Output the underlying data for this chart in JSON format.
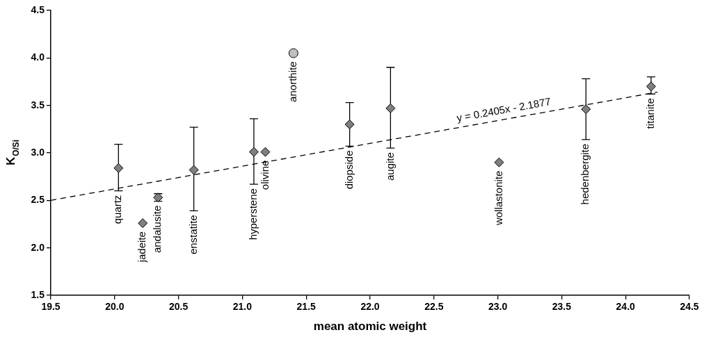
{
  "chart_data": {
    "type": "scatter",
    "xlabel": "mean atomic weight",
    "ylabel": "K$_{O/Si}$",
    "xlim": [
      19.5,
      24.5
    ],
    "ylim": [
      1.5,
      4.5
    ],
    "xticks": [
      19.5,
      {
        "value": 20,
        "label": "20.0"
      },
      20.5,
      {
        "value": 21,
        "label": "21.0"
      },
      21.5,
      {
        "value": 22,
        "label": "22.0"
      },
      22.5,
      {
        "value": 23,
        "label": "23.0"
      },
      23.5,
      {
        "value": 24,
        "label": "24.0"
      },
      24.5
    ],
    "yticks": [
      1.5,
      {
        "value": 2,
        "label": "2.0"
      },
      2.5,
      {
        "value": 3,
        "label": "3.0"
      },
      3.5,
      {
        "value": 4,
        "label": "4.0"
      },
      4.5
    ],
    "grid": false,
    "legend": false,
    "series": [
      {
        "color": "#7f7f7f",
        "marker": "diamond",
        "x": [
          20.03,
          20.22,
          20.34,
          20.62,
          21.09,
          21.18,
          21.84,
          22.16,
          23.01,
          23.69,
          24.2
        ],
        "values": [
          2.84,
          2.26,
          2.53,
          2.82,
          3.01,
          3.01,
          3.3,
          3.47,
          2.9,
          3.46,
          3.7
        ],
        "errors": [
          [
            2.6,
            3.09
          ],
          null,
          [
            2.49,
            2.57
          ],
          [
            2.39,
            3.27
          ],
          [
            2.67,
            3.36
          ],
          null,
          [
            3.07,
            3.53
          ],
          [
            3.05,
            3.9
          ],
          null,
          [
            3.14,
            3.78
          ],
          [
            3.62,
            3.8
          ]
        ]
      },
      {
        "color": "#bfbfbf",
        "marker": "circle",
        "x": [
          21.4
        ],
        "values": [
          4.05
        ]
      },
      {
        "type": "line",
        "color": "#000000",
        "marker": "none",
        "line_style": "dashed",
        "x": [
          19.5,
          24.25
        ],
        "values": [
          2.5,
          3.64
        ]
      }
    ],
    "annotations": [
      {
        "text": "quartz",
        "x": 20.03,
        "y": 2.6
      },
      {
        "text": "jadeite",
        "x": 20.22,
        "y": 2.26
      },
      {
        "text": "andalusite",
        "x": 20.34,
        "y": 2.49
      },
      {
        "text": "enstatite",
        "x": 20.62,
        "y": 2.39
      },
      {
        "text": "hyperstene",
        "x": 21.09,
        "y": 2.67
      },
      {
        "text": "olivine",
        "x": 21.18,
        "y": 3.01
      },
      {
        "text": "anorthite",
        "x": 21.4,
        "y": 4.05
      },
      {
        "text": "diopside",
        "x": 21.84,
        "y": 3.07
      },
      {
        "text": "augite",
        "x": 22.16,
        "y": 3.05
      },
      {
        "text": "wollastonite",
        "x": 23.01,
        "y": 2.9
      },
      {
        "text": "hedenbergite",
        "x": 23.69,
        "y": 3.14
      },
      {
        "text": "titanite",
        "x": 24.2,
        "y": 3.62
      },
      {
        "text": "y = 0.2405x - 2.1877",
        "x": 23.06,
        "y": 3.35
      }
    ]
  }
}
